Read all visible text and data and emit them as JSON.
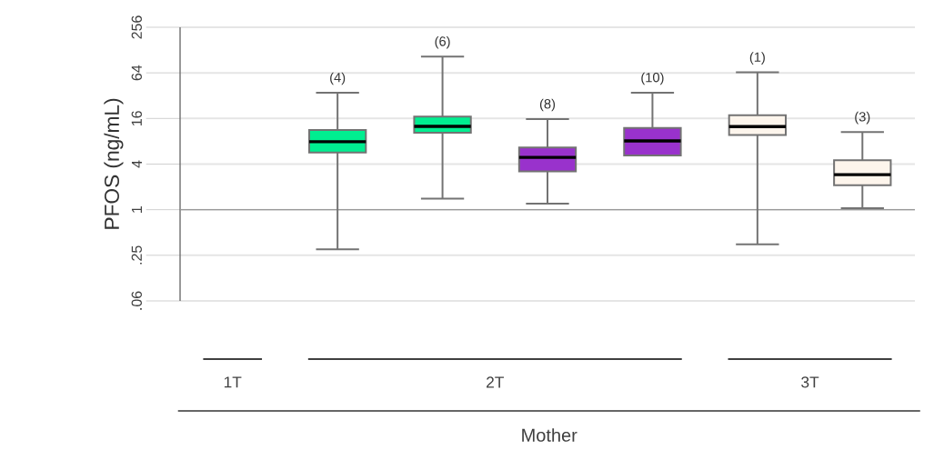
{
  "chart_data": {
    "type": "box",
    "ylabel": "PFOS (ng/mL)",
    "log": true,
    "grid": "y",
    "tick_labels": "y",
    "categories": [
      null,
      null,
      null,
      null,
      null,
      null,
      null
    ],
    "colors": [
      null,
      "#00ee90",
      "#00ee90",
      "#9932cc",
      "#9932cc",
      "#fdf5ec",
      "#fdf5ec"
    ],
    "boxes": [
      null,
      {
        "low": 0.3,
        "q1": 5.7,
        "median": 7.9,
        "q3": 11.3,
        "high": 35
      },
      {
        "low": 1.4,
        "q1": 10.4,
        "median": 12.6,
        "q3": 17,
        "high": 105
      },
      {
        "low": 1.2,
        "q1": 3.2,
        "median": 4.9,
        "q3": 6.6,
        "high": 15.7
      },
      {
        "low": 5.2,
        "q1": 5.2,
        "median": 8.1,
        "q3": 12,
        "high": 35
      },
      {
        "low": 0.35,
        "q1": 9.7,
        "median": 12.5,
        "q3": 17.7,
        "high": 65
      },
      {
        "low": 1.05,
        "q1": 2.1,
        "median": 2.9,
        "q3": 4.5,
        "high": 10.6
      }
    ],
    "ylim": [
      0.0625,
      256
    ],
    "yticks": [
      {
        "value": 0.0625,
        "label": ".06"
      },
      {
        "value": 0.25,
        "label": ".25"
      },
      1,
      4,
      16,
      64,
      256
    ],
    "ref_lines": [
      {
        "axis": "y",
        "value": 1,
        "color": "#999999"
      }
    ],
    "annotations": [
      "(4)",
      "(6)",
      "(8)",
      "(10)",
      "(1)",
      "(3)",
      "1T",
      "2T",
      "3T",
      "Mother"
    ]
  }
}
